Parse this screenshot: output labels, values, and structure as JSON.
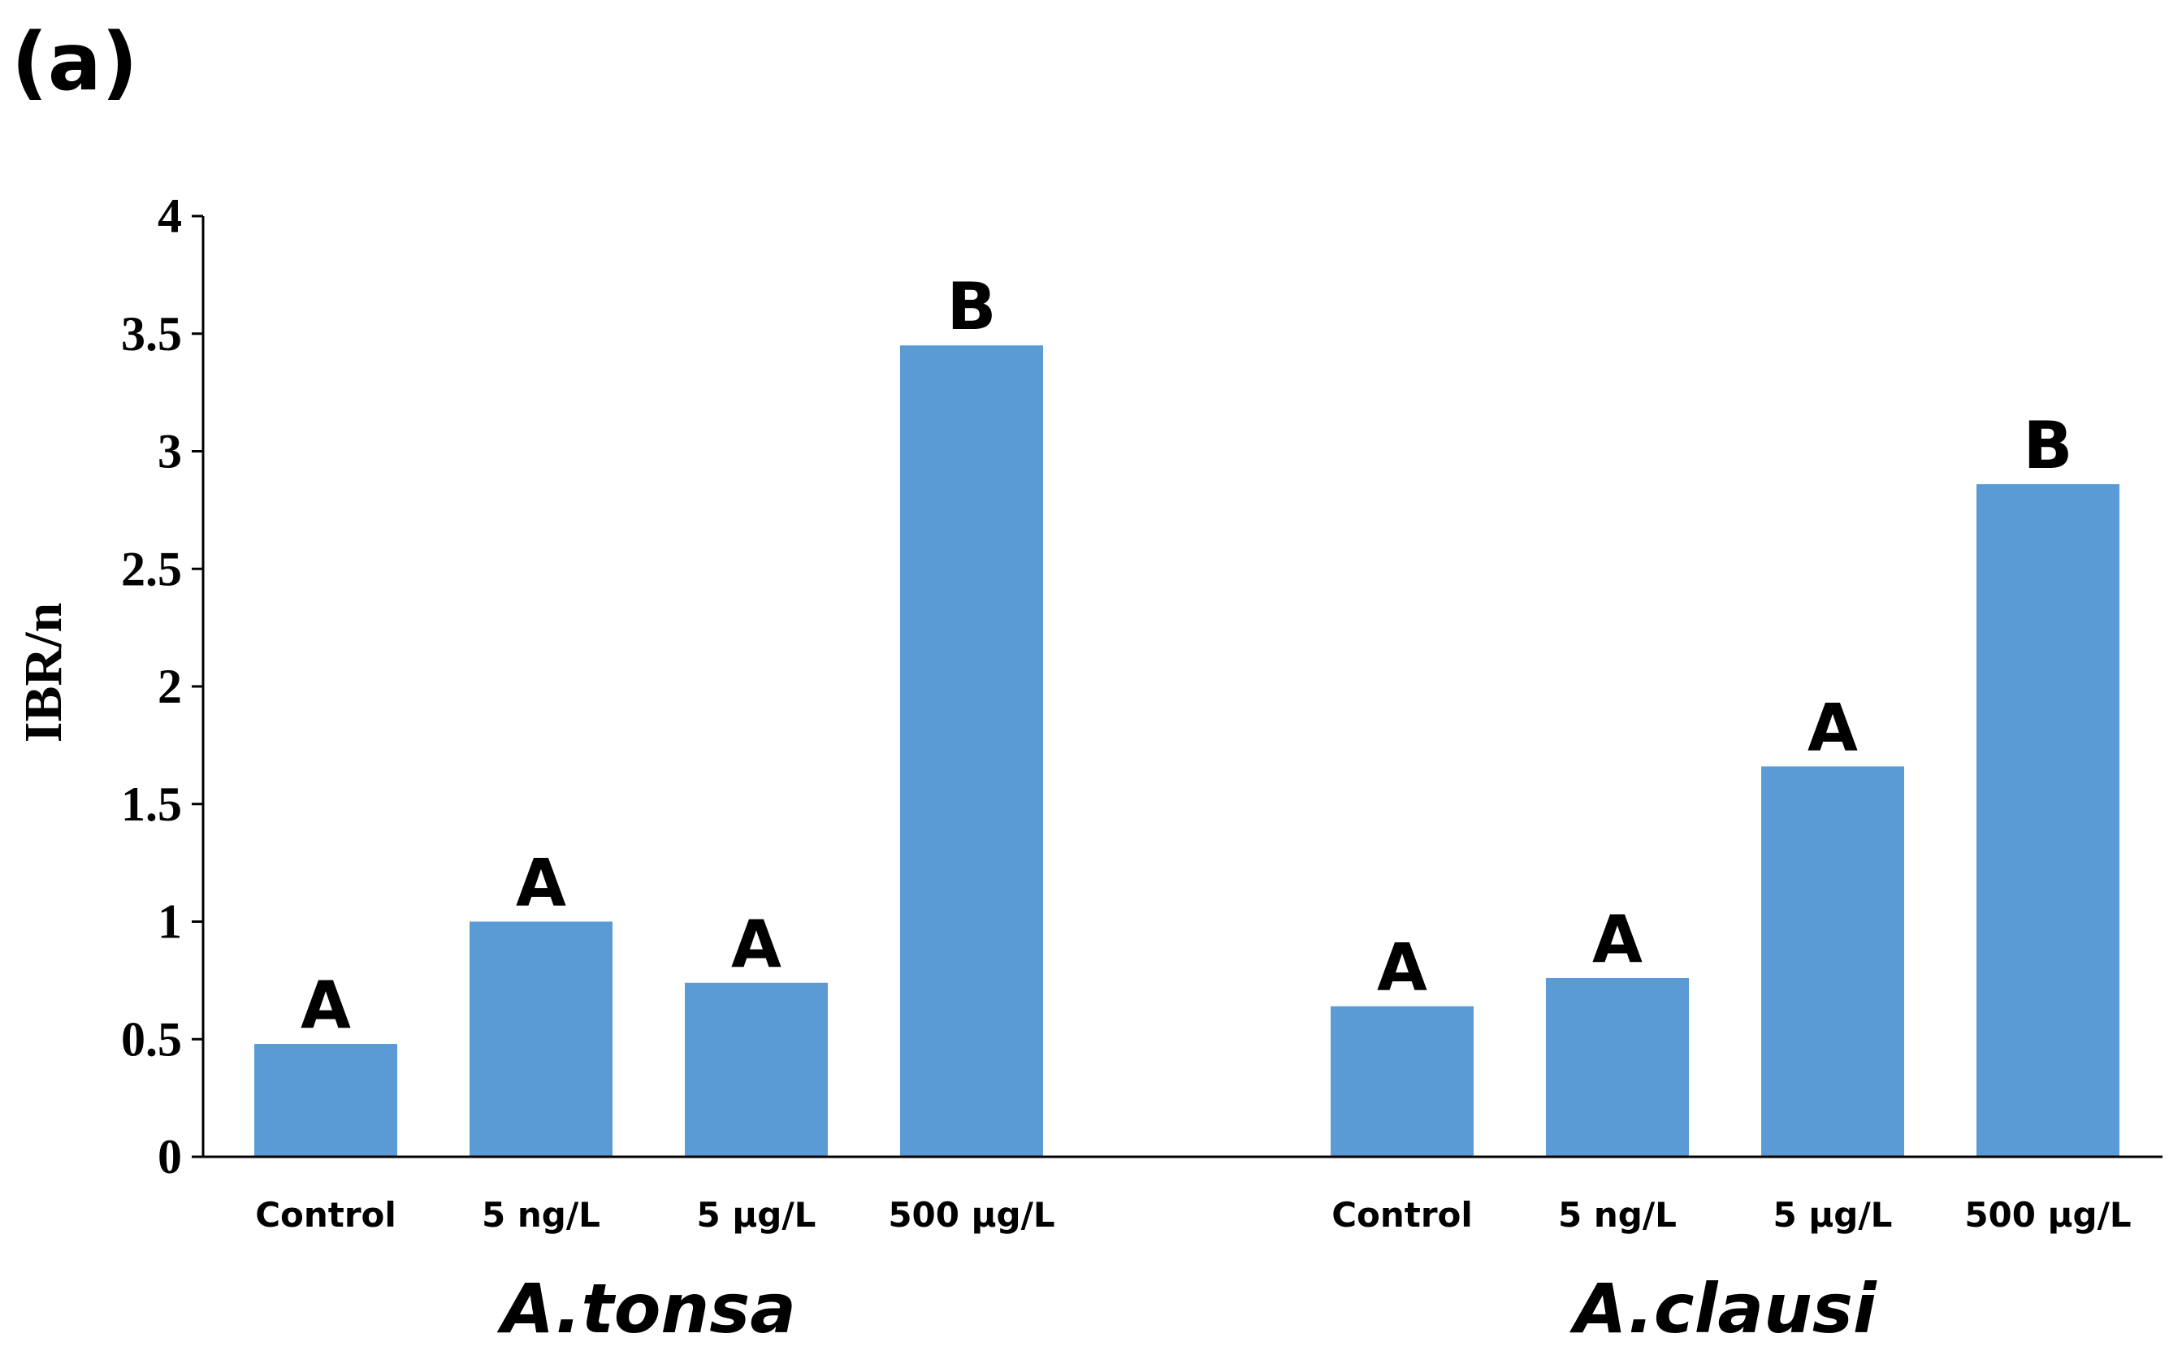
{
  "panel_label": "(a)",
  "chart_data": {
    "type": "bar",
    "title": "",
    "xlabel": "",
    "ylabel": "IBR/n",
    "ylim": [
      0,
      4
    ],
    "yticks": [
      "0",
      "0.5",
      "1",
      "1.5",
      "2",
      "2.5",
      "3",
      "3.5",
      "4"
    ],
    "grid": false,
    "legend": false,
    "bar_color": "#5b9bd5",
    "groups": [
      {
        "name": "A.tonsa",
        "categories": [
          "Control",
          "5 ng/L",
          "5 µg/L",
          "500 µg/L"
        ],
        "values": [
          0.48,
          1.0,
          0.74,
          3.45
        ],
        "labels": [
          "A",
          "A",
          "A",
          "B"
        ]
      },
      {
        "name": "A.clausi",
        "categories": [
          "Control",
          "5 ng/L",
          "5 µg/L",
          "500 µg/L"
        ],
        "values": [
          0.64,
          0.76,
          1.66,
          2.86
        ],
        "labels": [
          "A",
          "A",
          "A",
          "B"
        ]
      }
    ]
  }
}
